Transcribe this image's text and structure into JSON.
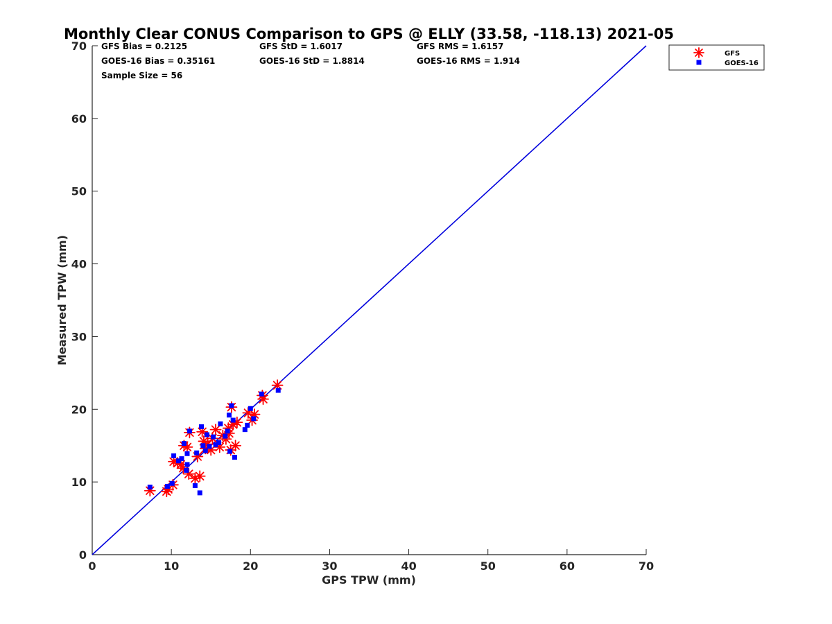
{
  "chart_data": {
    "type": "scatter",
    "title": "Monthly Clear CONUS Comparison to GPS @ ELLY (33.58, -118.13) 2021-05",
    "xlabel": "GPS TPW (mm)",
    "ylabel": "Measured TPW (mm)",
    "xlim": [
      0,
      70
    ],
    "ylim": [
      0,
      70
    ],
    "xticks": [
      "0",
      "10",
      "20",
      "30",
      "40",
      "50",
      "60",
      "70"
    ],
    "yticks": [
      "0",
      "10",
      "20",
      "30",
      "40",
      "50",
      "60",
      "70"
    ],
    "grid": false,
    "legend_position": "top-right, outside plot area",
    "stats": [
      "GFS Bias = 0.2125",
      "GFS StD = 1.6017",
      "GFS RMS = 1.6157",
      "GOES-16 Bias = 0.35161",
      "GOES-16 StD = 1.8814",
      "GOES-16 RMS = 1.914",
      "Sample Size = 56"
    ],
    "reference_line": {
      "x": [
        0,
        70
      ],
      "y": [
        0,
        70
      ],
      "color": "#0000dd"
    },
    "series": [
      {
        "name": "GFS",
        "marker": "asterisk",
        "color": "#ff0000",
        "points": [
          [
            7.3,
            8.8
          ],
          [
            9.4,
            8.7
          ],
          [
            9.6,
            9.0
          ],
          [
            10.2,
            9.6
          ],
          [
            10.3,
            12.8
          ],
          [
            10.8,
            12.6
          ],
          [
            11.2,
            12.4
          ],
          [
            11.5,
            11.9
          ],
          [
            11.6,
            15.0
          ],
          [
            12.0,
            14.8
          ],
          [
            12.2,
            11.1
          ],
          [
            12.3,
            16.8
          ],
          [
            13.0,
            10.5
          ],
          [
            13.3,
            13.5
          ],
          [
            13.6,
            10.8
          ],
          [
            13.9,
            16.9
          ],
          [
            14.1,
            15.6
          ],
          [
            14.3,
            14.6
          ],
          [
            14.6,
            15.2
          ],
          [
            15.0,
            14.4
          ],
          [
            15.2,
            16.0
          ],
          [
            15.6,
            17.2
          ],
          [
            16.1,
            14.8
          ],
          [
            16.5,
            16.4
          ],
          [
            16.9,
            15.9
          ],
          [
            17.2,
            17.4
          ],
          [
            17.3,
            16.7
          ],
          [
            17.5,
            14.4
          ],
          [
            17.6,
            20.3
          ],
          [
            17.8,
            17.9
          ],
          [
            18.1,
            15.0
          ],
          [
            18.3,
            18.2
          ],
          [
            19.7,
            19.5
          ],
          [
            20.2,
            18.5
          ],
          [
            20.5,
            19.3
          ],
          [
            21.6,
            21.4
          ],
          [
            21.5,
            21.9
          ],
          [
            23.4,
            23.3
          ]
        ]
      },
      {
        "name": "GOES-16",
        "marker": "square",
        "color": "#0000ff",
        "points": [
          [
            7.3,
            9.3
          ],
          [
            9.5,
            9.4
          ],
          [
            10.1,
            9.8
          ],
          [
            10.3,
            13.6
          ],
          [
            10.9,
            12.9
          ],
          [
            11.3,
            13.2
          ],
          [
            11.6,
            15.3
          ],
          [
            11.9,
            11.6
          ],
          [
            12.0,
            12.4
          ],
          [
            12.0,
            13.9
          ],
          [
            12.3,
            17.0
          ],
          [
            13.0,
            9.5
          ],
          [
            13.2,
            14.0
          ],
          [
            13.6,
            8.5
          ],
          [
            13.8,
            17.6
          ],
          [
            14.0,
            15.0
          ],
          [
            14.3,
            14.3
          ],
          [
            14.5,
            16.5
          ],
          [
            14.8,
            14.9
          ],
          [
            15.3,
            16.2
          ],
          [
            15.6,
            15.1
          ],
          [
            16.0,
            15.4
          ],
          [
            16.2,
            18.0
          ],
          [
            16.8,
            16.3
          ],
          [
            17.1,
            17.0
          ],
          [
            17.3,
            19.2
          ],
          [
            17.4,
            14.2
          ],
          [
            17.6,
            20.5
          ],
          [
            17.8,
            18.5
          ],
          [
            18.0,
            13.4
          ],
          [
            19.3,
            17.2
          ],
          [
            19.6,
            17.8
          ],
          [
            20.0,
            20.1
          ],
          [
            20.4,
            18.7
          ],
          [
            21.4,
            22.1
          ],
          [
            23.5,
            22.6
          ]
        ]
      }
    ]
  }
}
